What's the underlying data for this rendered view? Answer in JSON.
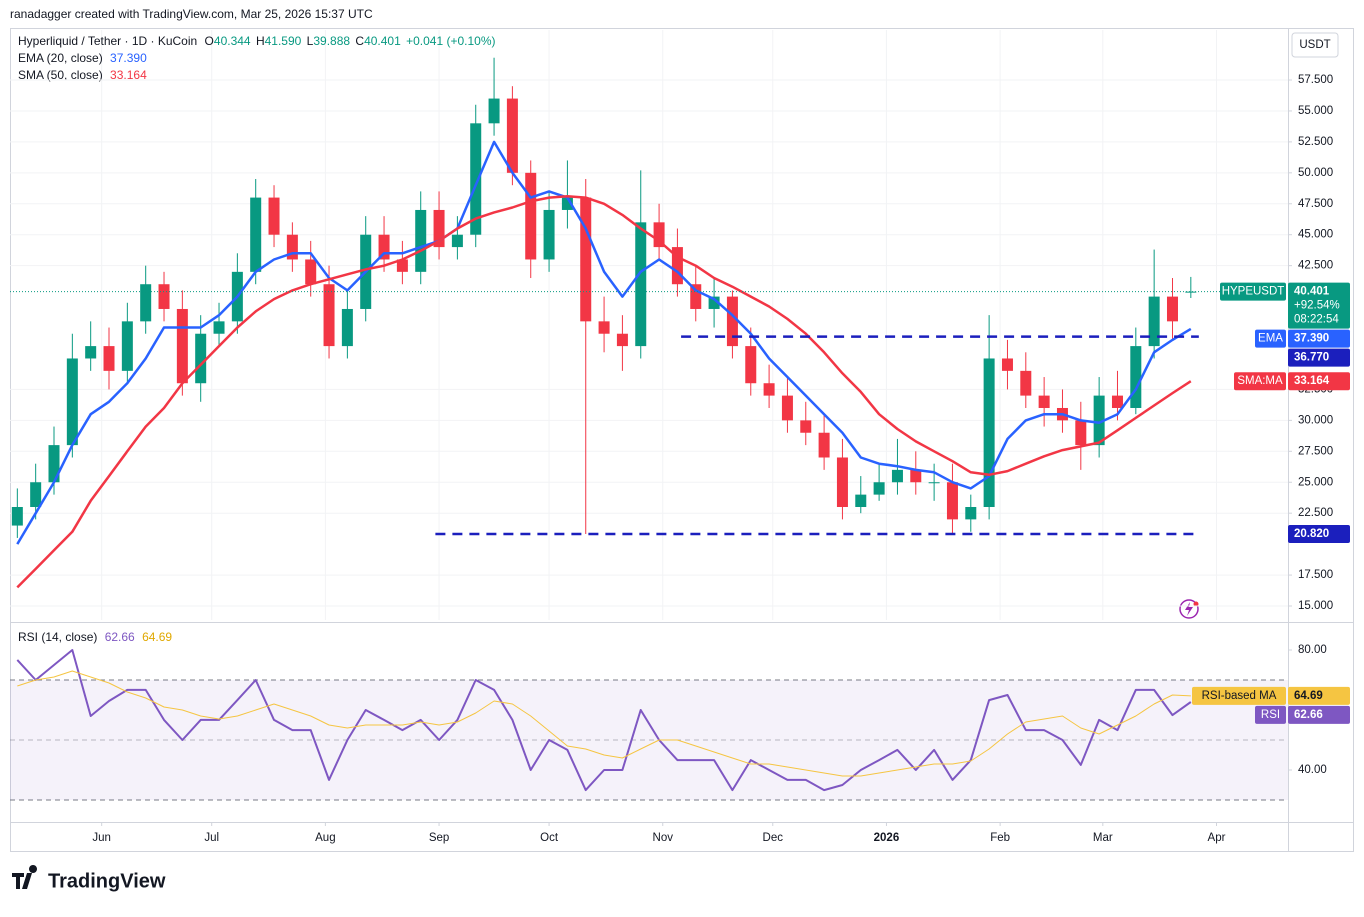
{
  "header": {
    "credit": "ranadagger created with TradingView.com, Mar 25, 2026 15:37 UTC",
    "scale_currency": "USDT",
    "footer_brand": "TradingView"
  },
  "chart_data": [
    {
      "type": "candlestick",
      "title": "Hyperliquid / Tether · 1D · KuCoin",
      "ohlc_legend": [
        {
          "key": "O",
          "value": "40.344"
        },
        {
          "key": "H",
          "value": "41.590"
        },
        {
          "key": "L",
          "value": "39.888"
        },
        {
          "key": "C",
          "value": "40.401"
        }
      ],
      "change": "+0.041 (+0.10%)",
      "up_color": "#089981",
      "down_color": "#f23645",
      "x": [
        2,
        7,
        12,
        17,
        22,
        27,
        32,
        37,
        42,
        47,
        52,
        57,
        62,
        67,
        72,
        77,
        82,
        87,
        92,
        97,
        102,
        107,
        112,
        117,
        122,
        127,
        132,
        137,
        142,
        147,
        152,
        157,
        162,
        167,
        172,
        177,
        182,
        187,
        192,
        197,
        202,
        207,
        212,
        217,
        222,
        227,
        232,
        237,
        242,
        247,
        252,
        257,
        262,
        267,
        272,
        277,
        282,
        287,
        292,
        297,
        302,
        307,
        312,
        317,
        322
      ],
      "open": [
        21.5,
        23,
        25,
        28,
        35,
        36,
        34,
        38,
        41,
        39,
        33,
        37,
        38,
        42,
        48,
        45,
        43,
        41,
        36,
        39,
        45,
        43,
        42,
        47,
        44,
        45,
        54,
        56,
        50,
        43,
        47,
        48,
        38,
        37,
        36,
        46,
        44,
        41,
        39,
        40,
        36,
        33,
        32,
        30,
        29,
        27,
        23,
        24,
        25,
        26,
        25,
        25,
        22,
        23,
        35,
        34,
        32,
        31,
        30,
        28,
        32,
        31,
        36,
        40,
        40.344
      ],
      "high": [
        24.5,
        26.5,
        29.5,
        37,
        38,
        37.5,
        39.5,
        42.5,
        42,
        40.5,
        38.5,
        39.5,
        43.5,
        49.5,
        49,
        46,
        44.5,
        42.5,
        40.5,
        46.5,
        46.5,
        44.5,
        48.5,
        48.5,
        46.5,
        55.5,
        59.3,
        57,
        51,
        48.5,
        51,
        49.5,
        40,
        38.5,
        50.2,
        47.5,
        45.5,
        42.5,
        41.5,
        40.5,
        37.5,
        34.5,
        33.5,
        31.5,
        30.5,
        28.5,
        25.5,
        26.5,
        28.5,
        27.5,
        26.5,
        26.5,
        24,
        38.5,
        36.5,
        35.5,
        33.5,
        32.5,
        31.5,
        33.5,
        34,
        37.5,
        43.8,
        41.5,
        41.59
      ],
      "low": [
        20.5,
        22,
        24,
        27,
        34,
        32.5,
        33,
        37,
        38,
        32,
        31.5,
        36,
        37,
        41,
        44,
        42,
        40,
        35,
        35,
        38,
        42,
        41,
        41,
        43,
        43,
        44,
        53,
        49,
        41.5,
        42,
        45.5,
        20.82,
        35.5,
        34,
        35,
        43,
        40,
        38,
        37.5,
        35,
        32,
        31,
        29,
        28,
        26,
        22,
        22.5,
        23.5,
        24,
        24,
        23.5,
        20.8,
        21,
        22,
        32.5,
        31,
        29.5,
        29,
        26,
        27,
        30,
        30.5,
        35,
        36.5,
        39.888
      ],
      "close": [
        23,
        25,
        28,
        35,
        36,
        34,
        38,
        41,
        39,
        33,
        37,
        38,
        42,
        48,
        45,
        43,
        41,
        36,
        39,
        45,
        43,
        42,
        47,
        44,
        45,
        54,
        56,
        50,
        43,
        47,
        48,
        38,
        37,
        36,
        46,
        44,
        41,
        39,
        40,
        36,
        33,
        32,
        30,
        29,
        27,
        23,
        24,
        25,
        26,
        25,
        25,
        22,
        23,
        35,
        34,
        32,
        31,
        30,
        28,
        32,
        31,
        36,
        40,
        38,
        40.401
      ],
      "series": [
        {
          "name": "EMA (20, close)",
          "tag": "EMA",
          "color": "#2962ff",
          "last_label": "37.390",
          "values": [
            20,
            22.5,
            25,
            28,
            30.5,
            31.5,
            33,
            35,
            37.5,
            37.5,
            37.5,
            38.5,
            40,
            42,
            43,
            43.5,
            43.5,
            41.5,
            40.5,
            42,
            43.5,
            43.5,
            44,
            44.5,
            45.5,
            49,
            52.5,
            50,
            48,
            48.5,
            48,
            45.5,
            42,
            40,
            42,
            43,
            42,
            40.5,
            39.8,
            38.5,
            37,
            35,
            33.5,
            32,
            30.5,
            29,
            27,
            26.5,
            26.3,
            26,
            25.8,
            25,
            24.5,
            25.5,
            28.5,
            30,
            30.5,
            30.5,
            30,
            29.8,
            30.5,
            32.5,
            35.5,
            36.5,
            37.39
          ]
        },
        {
          "name": "SMA (50, close)",
          "tag": "SMA:MA",
          "color": "#f23645",
          "last_label": "33.164",
          "values": [
            16.5,
            18,
            19.5,
            21,
            23.5,
            25.5,
            27.5,
            29.5,
            31,
            33,
            34.5,
            36,
            37.5,
            38.8,
            39.8,
            40.5,
            41,
            41.4,
            41.8,
            42.2,
            42.5,
            43,
            43.7,
            44.5,
            45.5,
            46.3,
            46.8,
            47.2,
            47.7,
            48,
            48.1,
            48,
            47.5,
            46.6,
            45.5,
            44.5,
            43.2,
            42.5,
            41.5,
            40.8,
            40,
            39.2,
            38.2,
            37,
            35.5,
            33.8,
            32.3,
            30.5,
            29.3,
            28.3,
            27.5,
            26.7,
            25.8,
            25.6,
            25.9,
            26.5,
            27.1,
            27.6,
            27.9,
            28.2,
            29.2,
            30.2,
            31.2,
            32.2,
            33.164
          ]
        }
      ],
      "levels": [
        {
          "value": 36.77,
          "label": "36.770",
          "x_start": 183,
          "color": "#1b1fbd"
        },
        {
          "value": 20.82,
          "label": "20.820",
          "x_start": 116,
          "color": "#1b1fbd"
        }
      ],
      "last_price": {
        "name": "HYPEUSDT",
        "value": 40.401,
        "label": "40.401",
        "change": "+92.54%",
        "countdown": "08:22:54"
      },
      "xlim": [
        0,
        348.5
      ],
      "xticks": [
        {
          "value": 25,
          "label": "Jun"
        },
        {
          "value": 55,
          "label": "Jul"
        },
        {
          "value": 86,
          "label": "Aug"
        },
        {
          "value": 117,
          "label": "Sep"
        },
        {
          "value": 147,
          "label": "Oct"
        },
        {
          "value": 178,
          "label": "Nov"
        },
        {
          "value": 208,
          "label": "Dec"
        },
        {
          "value": 239,
          "label": "2026"
        },
        {
          "value": 270,
          "label": "Feb"
        },
        {
          "value": 298,
          "label": "Mar"
        },
        {
          "value": 329,
          "label": "Apr"
        }
      ],
      "ylim": [
        13.87,
        61.54
      ],
      "yticks": [
        {
          "value": 15,
          "label": "15.000"
        },
        {
          "value": 17.5,
          "label": "17.500"
        },
        {
          "value": 22.5,
          "label": "22.500"
        },
        {
          "value": 25,
          "label": "25.000"
        },
        {
          "value": 27.5,
          "label": "27.500"
        },
        {
          "value": 30,
          "label": "30.000"
        },
        {
          "value": 32.5,
          "label": "32.500"
        },
        {
          "value": 42.5,
          "label": "42.500"
        },
        {
          "value": 45,
          "label": "45.000"
        },
        {
          "value": 47.5,
          "label": "47.500"
        },
        {
          "value": 50,
          "label": "50.000"
        },
        {
          "value": 52.5,
          "label": "52.500"
        },
        {
          "value": 55,
          "label": "55.000"
        },
        {
          "value": 57.5,
          "label": "57.500"
        }
      ],
      "grid": true
    },
    {
      "type": "line",
      "title": "RSI (14, close)",
      "x": [
        2,
        7,
        12,
        17,
        22,
        27,
        32,
        37,
        42,
        47,
        52,
        57,
        62,
        67,
        72,
        77,
        82,
        87,
        92,
        97,
        102,
        107,
        112,
        117,
        122,
        127,
        132,
        137,
        142,
        147,
        152,
        157,
        162,
        167,
        172,
        177,
        182,
        187,
        192,
        197,
        202,
        207,
        212,
        217,
        222,
        227,
        232,
        237,
        242,
        247,
        252,
        257,
        262,
        267,
        272,
        277,
        282,
        287,
        292,
        297,
        302,
        307,
        312,
        317,
        322
      ],
      "series": [
        {
          "name": "RSI",
          "tag": "RSI",
          "color": "#7e57c2",
          "last_label": "62.66",
          "values": [
            76.7,
            70,
            75,
            80,
            58,
            63,
            66.7,
            66.7,
            56.7,
            50,
            56.7,
            56.7,
            63.3,
            70,
            56.7,
            53.3,
            53.3,
            36.7,
            50,
            60,
            56.7,
            53.3,
            56.7,
            50,
            56.7,
            70,
            66.7,
            56.7,
            40,
            50,
            46.7,
            33.3,
            40,
            40,
            60,
            50,
            43.3,
            43.3,
            43.3,
            33.3,
            43.3,
            40,
            36.7,
            36.7,
            33.3,
            35,
            40,
            43.3,
            46.7,
            40,
            46.7,
            36.7,
            43.3,
            63.3,
            65,
            53.3,
            53.3,
            50,
            41.7,
            56.7,
            53.3,
            66.7,
            66.7,
            58.3,
            62.66
          ]
        },
        {
          "name": "RSI-based MA",
          "tag": "RSI-based MA",
          "color": "#f5c542",
          "last_label": "64.69",
          "values": [
            68,
            70,
            71,
            73,
            71,
            69,
            66,
            64,
            61,
            60,
            58,
            57,
            58,
            60,
            62,
            60,
            58,
            55,
            54,
            55,
            55,
            55,
            56,
            55,
            56,
            59,
            63,
            62,
            58,
            53,
            48,
            47,
            45,
            44,
            47,
            50,
            50,
            48,
            46,
            44,
            42,
            42,
            41,
            40,
            39,
            38,
            38,
            39,
            40,
            41,
            42,
            42,
            43,
            47,
            52,
            56,
            57,
            58,
            54,
            52,
            55,
            58,
            62,
            65,
            64.69
          ]
        }
      ],
      "xlim": [
        0,
        348.5
      ],
      "ylim": [
        23.33,
        88.33
      ],
      "yticks": [
        {
          "value": 80,
          "label": "80.00"
        },
        {
          "value": 40,
          "label": "40.00"
        }
      ],
      "band": [
        30,
        70
      ],
      "midline": 50,
      "band_color": "#7e57c2"
    }
  ]
}
